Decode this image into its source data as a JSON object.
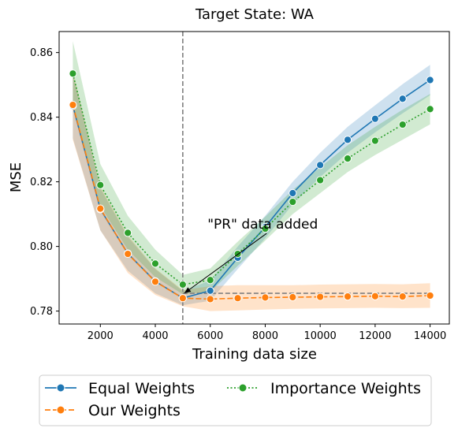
{
  "chart_data": {
    "type": "line",
    "title": "Target State: WA",
    "xlabel": "Training data size",
    "ylabel": "MSE",
    "xlim": [
      500,
      14700
    ],
    "ylim": [
      0.776,
      0.8665
    ],
    "xticks": [
      2000,
      4000,
      6000,
      8000,
      10000,
      12000,
      14000
    ],
    "xtick_labels": [
      "2000",
      "4000",
      "6000",
      "8000",
      "10000",
      "12000",
      "14000"
    ],
    "yticks": [
      0.78,
      0.8,
      0.82,
      0.84,
      0.86
    ],
    "ytick_labels": [
      "0.78",
      "0.80",
      "0.82",
      "0.84",
      "0.86"
    ],
    "grid": false,
    "legend_position": "bottom-outside",
    "vline": {
      "x": 5000,
      "color": "#808080",
      "style": "dashed"
    },
    "hline": {
      "y": 0.7855,
      "x_from": 5000,
      "x_to": 14000,
      "color": "#808080",
      "style": "dashed"
    },
    "annotation": {
      "text": "\"PR\" data added",
      "text_x": 5900,
      "text_y": 0.8055,
      "arrow_to_x": 5000,
      "arrow_to_y": 0.7853
    },
    "x": [
      1000,
      2000,
      3000,
      4000,
      5000,
      6000,
      7000,
      8000,
      9000,
      10000,
      11000,
      12000,
      13000,
      14000
    ],
    "series": [
      {
        "name": "Equal Weights",
        "color": "#1f77b4",
        "linestyle": "solid",
        "values": [
          0.8435,
          0.8115,
          0.7978,
          0.7892,
          0.784,
          0.7863,
          0.7965,
          0.806,
          0.8165,
          0.8252,
          0.833,
          0.8395,
          0.8457,
          0.8515
        ],
        "ci_low": [
          0.8335,
          0.805,
          0.7925,
          0.7855,
          0.7818,
          0.7832,
          0.793,
          0.8025,
          0.813,
          0.8215,
          0.829,
          0.8353,
          0.8412,
          0.8468
        ],
        "ci_high": [
          0.8535,
          0.818,
          0.803,
          0.793,
          0.7862,
          0.7895,
          0.8,
          0.8095,
          0.82,
          0.829,
          0.837,
          0.8437,
          0.8502,
          0.8562
        ]
      },
      {
        "name": "Our Weights",
        "color": "#ff7f0e",
        "linestyle": "dashed",
        "values": [
          0.8438,
          0.8117,
          0.7977,
          0.7891,
          0.784,
          0.7837,
          0.784,
          0.7842,
          0.7843,
          0.7844,
          0.7845,
          0.7846,
          0.7845,
          0.7848
        ],
        "ci_low": [
          0.833,
          0.805,
          0.7918,
          0.785,
          0.7815,
          0.78,
          0.7802,
          0.7805,
          0.7807,
          0.7808,
          0.7809,
          0.781,
          0.7809,
          0.781
        ],
        "ci_high": [
          0.8545,
          0.8185,
          0.8035,
          0.7932,
          0.7865,
          0.7877,
          0.788,
          0.788,
          0.788,
          0.7882,
          0.7883,
          0.7884,
          0.7883,
          0.7886
        ]
      },
      {
        "name": "Importance Weights",
        "color": "#2ca02c",
        "linestyle": "dotted",
        "values": [
          0.8535,
          0.819,
          0.8042,
          0.7947,
          0.7882,
          0.7896,
          0.7977,
          0.8055,
          0.8138,
          0.8205,
          0.8272,
          0.8327,
          0.8377,
          0.8425
        ],
        "ci_low": [
          0.8435,
          0.8125,
          0.799,
          0.7905,
          0.7852,
          0.786,
          0.794,
          0.8018,
          0.81,
          0.8165,
          0.823,
          0.8283,
          0.833,
          0.8378
        ],
        "ci_high": [
          0.8635,
          0.8255,
          0.8095,
          0.799,
          0.7912,
          0.7932,
          0.8015,
          0.8092,
          0.8175,
          0.8245,
          0.8313,
          0.837,
          0.8423,
          0.8472
        ]
      }
    ]
  }
}
